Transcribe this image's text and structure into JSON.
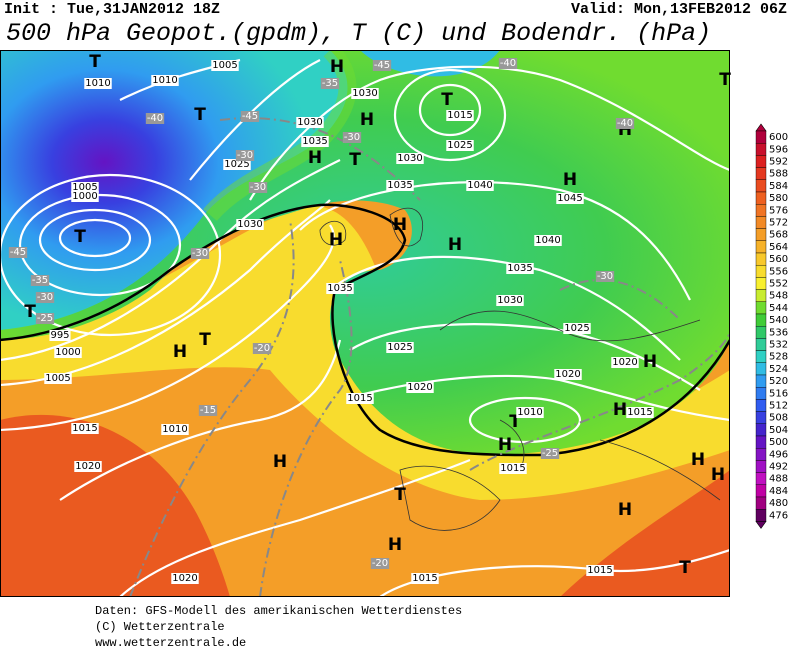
{
  "header": {
    "init": "Init : Tue,31JAN2012 18Z",
    "valid": "Valid: Mon,13FEB2012 06Z",
    "title": "500 hPa Geopot.(gpdm), T (C) und Bodendr. (hPa)"
  },
  "colorbar": {
    "values": [
      600,
      596,
      592,
      588,
      584,
      580,
      576,
      572,
      568,
      564,
      560,
      556,
      552,
      548,
      544,
      540,
      536,
      532,
      528,
      524,
      520,
      516,
      512,
      508,
      504,
      500,
      496,
      492,
      488,
      484,
      480,
      476
    ],
    "colors": [
      "#b0003c",
      "#c8102c",
      "#dc2020",
      "#e43820",
      "#ea4c20",
      "#ee6020",
      "#f07424",
      "#f28a26",
      "#f49e28",
      "#f6b22a",
      "#f8c82c",
      "#f8dc2e",
      "#f8f030",
      "#c8ec30",
      "#70dc30",
      "#40cc38",
      "#30c868",
      "#30cc98",
      "#30d0c4",
      "#30bce4",
      "#309cf0",
      "#307cf0",
      "#305cf0",
      "#3840e0",
      "#4424cc",
      "#6414c4",
      "#8414c4",
      "#a010c4",
      "#c010c0",
      "#c000a4",
      "#a00080",
      "#600060"
    ]
  },
  "map": {
    "pressure_centers": [
      "H",
      "H",
      "H",
      "H",
      "H",
      "H",
      "H",
      "H",
      "H",
      "H",
      "H",
      "H",
      "H",
      "H",
      "H",
      "H",
      "H",
      "T",
      "T",
      "T",
      "T",
      "T",
      "T",
      "T",
      "T",
      "T",
      "T",
      "T"
    ],
    "isobar_labels": [
      "1010",
      "1005",
      "1030",
      "1015",
      "1025",
      "1030",
      "1035",
      "1040",
      "1045",
      "1040",
      "1035",
      "1030",
      "1025",
      "1020",
      "1020",
      "1025",
      "1020",
      "1015",
      "1010",
      "1015",
      "1015",
      "1010",
      "1015",
      "1020",
      "1005",
      "1000",
      "995",
      "1020",
      "1015",
      "1015",
      "1035",
      "1030",
      "1025",
      "1030",
      "1035",
      "1010",
      "1005",
      "1000"
    ],
    "temperature_labels": [
      "-40",
      "-45",
      "-35",
      "-45",
      "-40",
      "-40",
      "-30",
      "-30",
      "-30",
      "-30",
      "-35",
      "-30",
      "-25",
      "-20",
      "-15",
      "-30",
      "-25",
      "-20",
      "-45"
    ]
  },
  "footer": [
    "Daten: GFS-Modell des amerikanischen Wetterdienstes",
    "(C) Wetterzentrale",
    "www.wetterzentrale.de"
  ]
}
